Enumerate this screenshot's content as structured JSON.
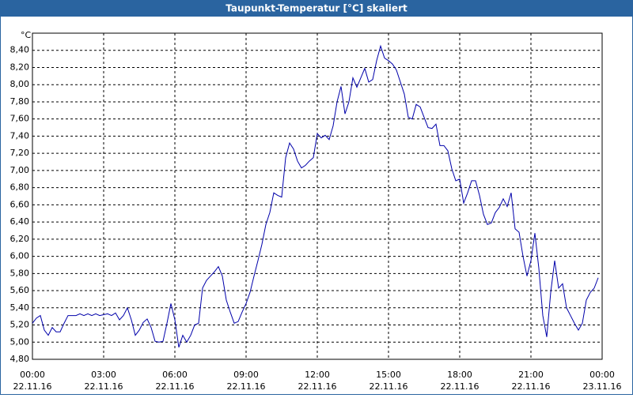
{
  "chart_data": {
    "type": "line",
    "title": "Taupunkt-Temperatur [°C] skaliert",
    "y_unit": "°C",
    "x": [
      0,
      10,
      20,
      30,
      40,
      50,
      60,
      70,
      80,
      90,
      100,
      110,
      120,
      130,
      140,
      150,
      160,
      170,
      180,
      190,
      200,
      210,
      220,
      230,
      240,
      250,
      260,
      270,
      280,
      290,
      300,
      310,
      320,
      330,
      340,
      350,
      360,
      370,
      380,
      390,
      400,
      410,
      420,
      430,
      440,
      450,
      460,
      470,
      480,
      490,
      500,
      510,
      520,
      530,
      540,
      550,
      560,
      570,
      580,
      590,
      600,
      610,
      620,
      630,
      640,
      650,
      660,
      670,
      680,
      690,
      700,
      710,
      720,
      730,
      740,
      750,
      760,
      770,
      780,
      790,
      800,
      810,
      820,
      830,
      840,
      850,
      860,
      870,
      880,
      890,
      900,
      910,
      920,
      930,
      940,
      950,
      960,
      970,
      980,
      990,
      1000,
      1010,
      1020,
      1030,
      1040,
      1050,
      1060,
      1070,
      1080,
      1090,
      1100,
      1110,
      1120,
      1130,
      1140,
      1150,
      1160,
      1170,
      1180,
      1190,
      1200,
      1210,
      1220,
      1230,
      1240,
      1250,
      1260,
      1270,
      1280,
      1290,
      1300,
      1310,
      1320,
      1330,
      1340,
      1350,
      1360,
      1370,
      1380,
      1390,
      1400,
      1410,
      1420,
      1430
    ],
    "series": [
      {
        "color": "#0000aa",
        "values": [
          5.22,
          5.28,
          5.31,
          5.14,
          5.08,
          5.17,
          5.12,
          5.12,
          5.22,
          5.31,
          5.31,
          5.31,
          5.33,
          5.31,
          5.33,
          5.31,
          5.33,
          5.31,
          5.32,
          5.33,
          5.31,
          5.34,
          5.26,
          5.31,
          5.4,
          5.26,
          5.08,
          5.14,
          5.23,
          5.27,
          5.17,
          5.01,
          5.0,
          5.01,
          5.22,
          5.45,
          5.26,
          4.94,
          5.08,
          5.0,
          5.08,
          5.2,
          5.22,
          5.63,
          5.72,
          5.77,
          5.82,
          5.88,
          5.77,
          5.49,
          5.35,
          5.22,
          5.24,
          5.35,
          5.45,
          5.58,
          5.77,
          5.95,
          6.14,
          6.37,
          6.51,
          6.74,
          6.71,
          6.69,
          7.15,
          7.32,
          7.25,
          7.11,
          7.03,
          7.06,
          7.11,
          7.15,
          7.43,
          7.38,
          7.41,
          7.36,
          7.52,
          7.8,
          7.98,
          7.66,
          7.8,
          8.08,
          7.97,
          8.08,
          8.19,
          8.03,
          8.06,
          8.28,
          8.45,
          8.31,
          8.28,
          8.24,
          8.17,
          8.03,
          7.89,
          7.62,
          7.6,
          7.77,
          7.74,
          7.62,
          7.5,
          7.49,
          7.54,
          7.29,
          7.29,
          7.23,
          7.02,
          6.88,
          6.9,
          6.62,
          6.74,
          6.88,
          6.88,
          6.71,
          6.49,
          6.37,
          6.39,
          6.51,
          6.57,
          6.67,
          6.58,
          6.74,
          6.32,
          6.28,
          6.0,
          5.77,
          5.95,
          6.27,
          5.86,
          5.31,
          5.06,
          5.58,
          5.95,
          5.63,
          5.68,
          5.4,
          5.31,
          5.22,
          5.14,
          5.22,
          5.49,
          5.58,
          5.63,
          5.75
        ]
      }
    ],
    "xlim": [
      0,
      1440
    ],
    "xticks": [
      {
        "value": 0,
        "label": "00:00"
      },
      {
        "value": 180,
        "label": "03:00"
      },
      {
        "value": 360,
        "label": "06:00"
      },
      {
        "value": 540,
        "label": "09:00"
      },
      {
        "value": 720,
        "label": "12:00"
      },
      {
        "value": 900,
        "label": "15:00"
      },
      {
        "value": 1080,
        "label": "18:00"
      },
      {
        "value": 1260,
        "label": "21:00"
      },
      {
        "value": 1440,
        "label": "00:00"
      }
    ],
    "xtick_dates": [
      "22.11.16",
      "22.11.16",
      "22.11.16",
      "22.11.16",
      "22.11.16",
      "22.11.16",
      "22.11.16",
      "22.11.16",
      "23.11.16"
    ],
    "ylim": [
      4.8,
      8.6
    ],
    "yticks": [
      {
        "value": 4.8,
        "label": "4,80"
      },
      {
        "value": 5.0,
        "label": "5,00"
      },
      {
        "value": 5.2,
        "label": "5,20"
      },
      {
        "value": 5.4,
        "label": "5,40"
      },
      {
        "value": 5.6,
        "label": "5,60"
      },
      {
        "value": 5.8,
        "label": "5,80"
      },
      {
        "value": 6.0,
        "label": "6,00"
      },
      {
        "value": 6.2,
        "label": "6,20"
      },
      {
        "value": 6.4,
        "label": "6,40"
      },
      {
        "value": 6.6,
        "label": "6,60"
      },
      {
        "value": 6.8,
        "label": "6,80"
      },
      {
        "value": 7.0,
        "label": "7,00"
      },
      {
        "value": 7.2,
        "label": "7,20"
      },
      {
        "value": 7.4,
        "label": "7,40"
      },
      {
        "value": 7.6,
        "label": "7,60"
      },
      {
        "value": 7.8,
        "label": "7,80"
      },
      {
        "value": 8.0,
        "label": "8,00"
      },
      {
        "value": 8.2,
        "label": "8,20"
      },
      {
        "value": 8.4,
        "label": "8,40"
      }
    ],
    "grid": true
  }
}
